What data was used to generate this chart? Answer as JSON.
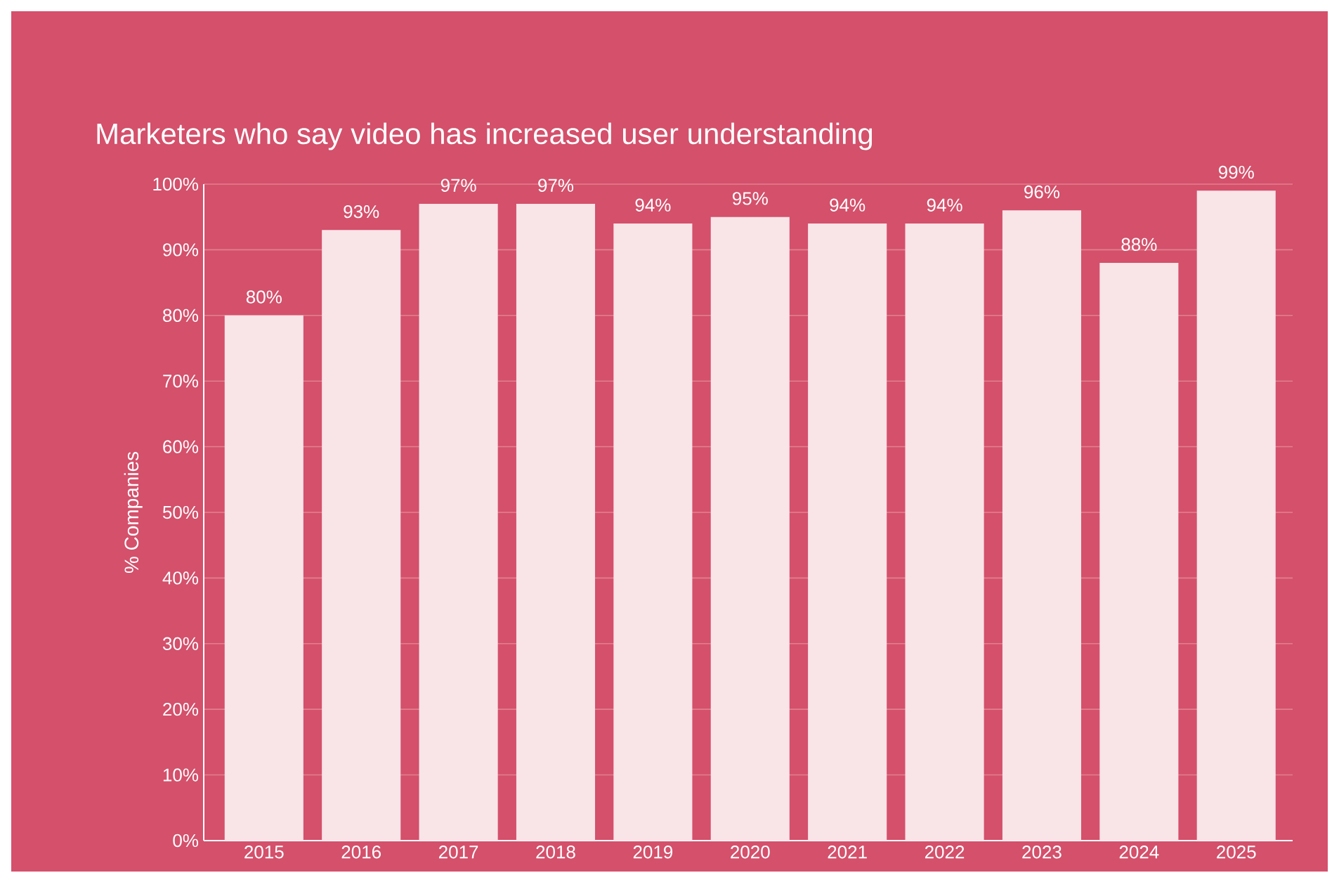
{
  "chart_data": {
    "type": "bar",
    "title": "Marketers who say video has increased user understanding",
    "ylabel": "% Companies",
    "categories": [
      "2015",
      "2016",
      "2017",
      "2018",
      "2019",
      "2020",
      "2021",
      "2022",
      "2023",
      "2024",
      "2025"
    ],
    "values": [
      80,
      93,
      97,
      97,
      94,
      95,
      94,
      94,
      96,
      88,
      99
    ],
    "value_labels": [
      "80%",
      "93%",
      "97%",
      "97%",
      "94%",
      "95%",
      "94%",
      "94%",
      "96%",
      "88%",
      "99%"
    ],
    "color": "#f9e4e8",
    "ylim": [
      0,
      100
    ],
    "yticks": [
      {
        "value": 0,
        "label": "0%"
      },
      {
        "value": 10,
        "label": "10%"
      },
      {
        "value": 20,
        "label": "20%"
      },
      {
        "value": 30,
        "label": "30%"
      },
      {
        "value": 40,
        "label": "40%"
      },
      {
        "value": 50,
        "label": "50%"
      },
      {
        "value": 60,
        "label": "60%"
      },
      {
        "value": 70,
        "label": "70%"
      },
      {
        "value": 80,
        "label": "80%"
      },
      {
        "value": 90,
        "label": "90%"
      },
      {
        "value": 100,
        "label": "100%"
      }
    ],
    "grid": "y"
  }
}
